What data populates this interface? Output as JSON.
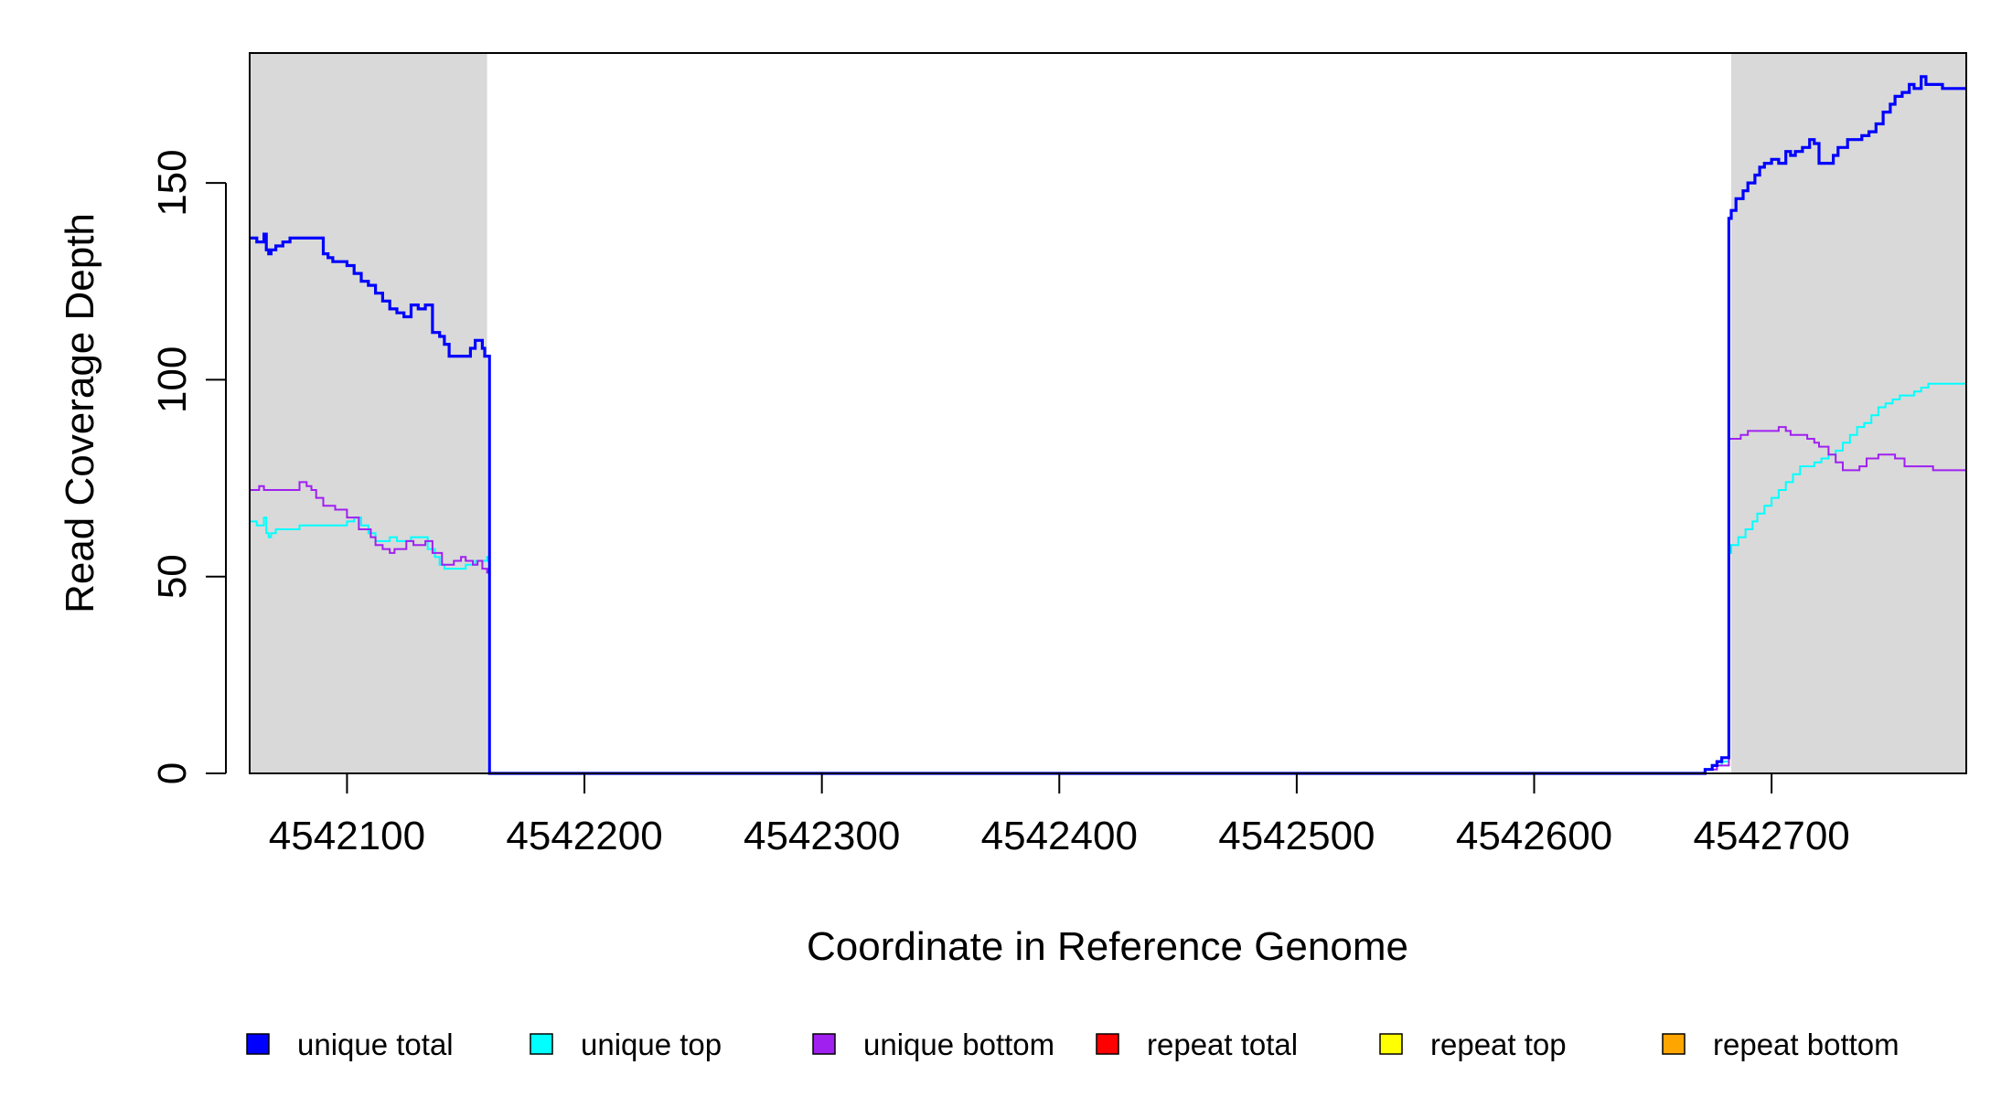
{
  "chart_data": {
    "type": "line",
    "title": "",
    "xlabel": "Coordinate in Reference Genome",
    "ylabel": "Read Coverage Depth",
    "xlim": [
      4542059,
      4542782
    ],
    "ylim": [
      0,
      183
    ],
    "x_ticks": [
      4542100,
      4542200,
      4542300,
      4542400,
      4542500,
      4542600,
      4542700
    ],
    "x_tick_labels": [
      "4542100",
      "4542200",
      "4542300",
      "4542400",
      "4542500",
      "4542600",
      "4542700"
    ],
    "y_ticks": [
      0,
      50,
      100,
      150
    ],
    "y_tick_labels": [
      "0",
      "50",
      "100",
      "150"
    ],
    "grid": false,
    "shaded_regions": [
      {
        "x": [
          4542059,
          4542159
        ],
        "color": "#d9d9d9"
      },
      {
        "x": [
          4542683,
          4542782
        ],
        "color": "#d9d9d9"
      }
    ],
    "legend_position": "bottom",
    "series": [
      {
        "name": "unique total",
        "color": "#0000ff",
        "x": [
          4542059,
          4542062,
          4542065,
          4542066,
          4542067,
          4542068,
          4542070,
          4542073,
          4542076,
          4542080,
          4542090,
          4542092,
          4542094,
          4542097,
          4542100,
          4542103,
          4542106,
          4542109,
          4542112,
          4542115,
          4542118,
          4542121,
          4542124,
          4542127,
          4542130,
          4542133,
          4542136,
          4542139,
          4542141,
          4542143,
          4542145,
          4542152,
          4542154,
          4542157,
          4542158,
          4542159,
          4542160,
          4542665,
          4542672,
          4542675,
          4542677,
          4542679,
          4542681,
          4542682,
          4542683,
          4542685,
          4542688,
          4542690,
          4542693,
          4542695,
          4542697,
          4542700,
          4542703,
          4542706,
          4542708,
          4542710,
          4542713,
          4542716,
          4542718,
          4542720,
          4542722,
          4542726,
          4542728,
          4542732,
          4542735,
          4542738,
          4542741,
          4542744,
          4542747,
          4542750,
          4542752,
          4542755,
          4542758,
          4542760,
          4542763,
          4542765,
          4542768,
          4542772,
          4542774,
          4542782
        ],
        "y": [
          136,
          135,
          137,
          133,
          132,
          133,
          134,
          135,
          136,
          136,
          132,
          131,
          130,
          130,
          129,
          127,
          125,
          124,
          122,
          120,
          118,
          117,
          116,
          119,
          118,
          119,
          112,
          111,
          109,
          106,
          106,
          108,
          110,
          108,
          106,
          106,
          0,
          0,
          1,
          2,
          3,
          4,
          4,
          141,
          143,
          146,
          148,
          150,
          152,
          154,
          155,
          156,
          155,
          158,
          157,
          158,
          159,
          161,
          160,
          155,
          155,
          157,
          159,
          161,
          161,
          162,
          163,
          165,
          168,
          170,
          172,
          173,
          175,
          174,
          177,
          175,
          175,
          174,
          174,
          174
        ]
      },
      {
        "name": "unique top",
        "color": "#00ffff",
        "x": [
          4542059,
          4542062,
          4542065,
          4542066,
          4542067,
          4542068,
          4542070,
          4542073,
          4542080,
          4542090,
          4542100,
          4542103,
          4542106,
          4542109,
          4542112,
          4542115,
          4542118,
          4542121,
          4542124,
          4542127,
          4542130,
          4542134,
          4542137,
          4542139,
          4542141,
          4542145,
          4542150,
          4542154,
          4542157,
          4542159,
          4542160,
          4542665,
          4542672,
          4542675,
          4542677,
          4542679,
          4542681,
          4542682,
          4542683,
          4542686,
          4542689,
          4542692,
          4542694,
          4542697,
          4542700,
          4542703,
          4542706,
          4542709,
          4542712,
          4542715,
          4542718,
          4542721,
          4542724,
          4542727,
          4542730,
          4542733,
          4542736,
          4542739,
          4542742,
          4542745,
          4542748,
          4542751,
          4542754,
          4542757,
          4542760,
          4542763,
          4542766,
          4542770,
          4542775,
          4542782
        ],
        "y": [
          64,
          63,
          65,
          61,
          60,
          61,
          62,
          62,
          63,
          63,
          64,
          65,
          63,
          61,
          59,
          59,
          60,
          59,
          59,
          60,
          60,
          57,
          55,
          53,
          52,
          52,
          53,
          54,
          54,
          55,
          0,
          0,
          1,
          2,
          2,
          3,
          3,
          56,
          58,
          60,
          62,
          64,
          66,
          68,
          70,
          72,
          74,
          76,
          78,
          78,
          79,
          80,
          81,
          82,
          84,
          86,
          88,
          89,
          91,
          93,
          94,
          95,
          96,
          96,
          97,
          98,
          99,
          99,
          99,
          99
        ]
      },
      {
        "name": "unique bottom",
        "color": "#a020f0",
        "x": [
          4542059,
          4542063,
          4542065,
          4542070,
          4542076,
          4542080,
          4542083,
          4542085,
          4542087,
          4542090,
          4542095,
          4542100,
          4542105,
          4542110,
          4542112,
          4542115,
          4542118,
          4542120,
          4542125,
          4542128,
          4542133,
          4542136,
          4542140,
          4542145,
          4542148,
          4542150,
          4542153,
          4542155,
          4542157,
          4542159,
          4542160,
          4542665,
          4542672,
          4542675,
          4542677,
          4542679,
          4542681,
          4542682,
          4542683,
          4542687,
          4542690,
          4542695,
          4542700,
          4542703,
          4542706,
          4542708,
          4542712,
          4542715,
          4542718,
          4542720,
          4542724,
          4542727,
          4542730,
          4542733,
          4542735,
          4542737,
          4542740,
          4542745,
          4542752,
          4542756,
          4542758,
          4542762,
          4542765,
          4542768,
          4542771,
          4542774,
          4542782
        ],
        "y": [
          72,
          73,
          72,
          72,
          72,
          74,
          73,
          72,
          70,
          68,
          67,
          65,
          62,
          60,
          58,
          57,
          56,
          57,
          59,
          58,
          59,
          56,
          53,
          54,
          55,
          54,
          53,
          54,
          52,
          51,
          0,
          0,
          1,
          1,
          2,
          2,
          2,
          85,
          85,
          86,
          87,
          87,
          87,
          88,
          87,
          86,
          86,
          85,
          84,
          83,
          81,
          79,
          77,
          77,
          77,
          78,
          80,
          81,
          80,
          78,
          78,
          78,
          78,
          77,
          77,
          77,
          75
        ]
      },
      {
        "name": "repeat total",
        "color": "#ff0000",
        "x": [
          4542059,
          4542782
        ],
        "y": [
          0,
          0
        ]
      },
      {
        "name": "repeat top",
        "color": "#ffff00",
        "x": [
          4542059,
          4542782
        ],
        "y": [
          0,
          0
        ]
      },
      {
        "name": "repeat bottom",
        "color": "#ffa500",
        "x": [
          4542059,
          4542782
        ],
        "y": [
          0,
          0
        ]
      }
    ]
  }
}
